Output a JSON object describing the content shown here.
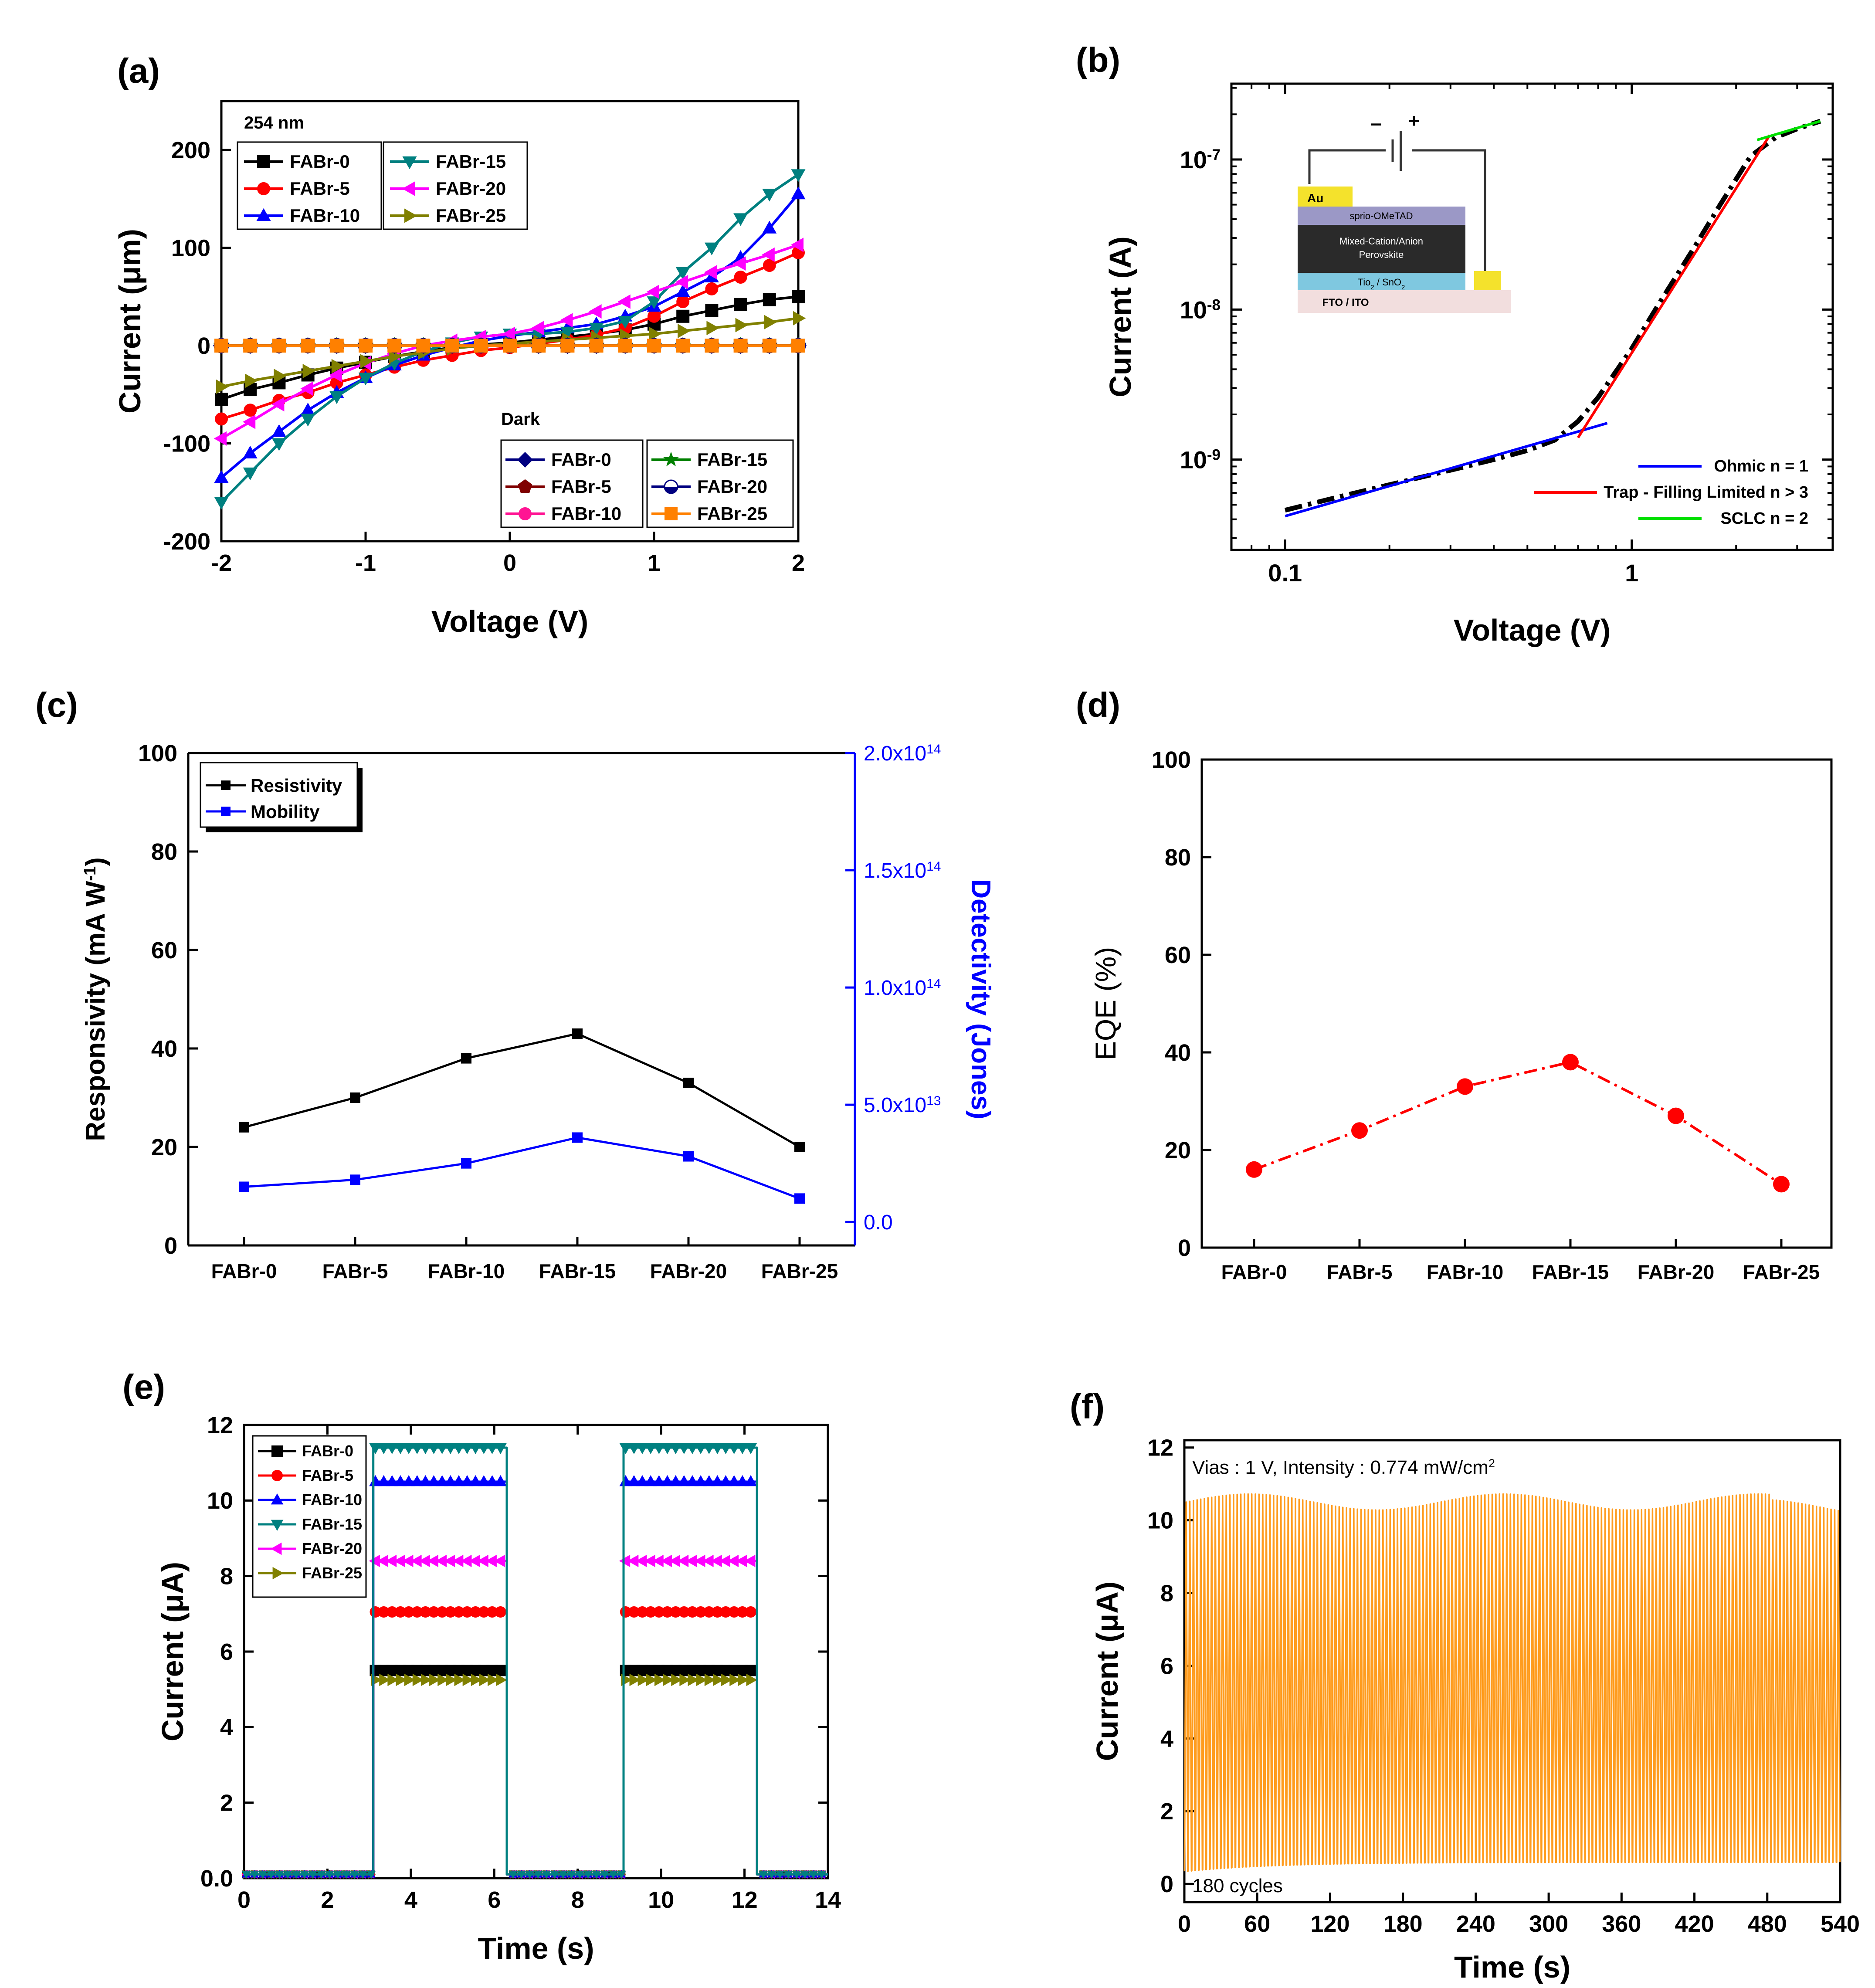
{
  "colors": {
    "black": "#000000",
    "red": "#ff0000",
    "blue": "#0000ff",
    "teal": "#008080",
    "magenta": "#ff00ff",
    "olive": "#808000",
    "navy": "#000080",
    "maroon": "#800000",
    "pink": "#ff1493",
    "green": "#008000",
    "orange": "#ff8000",
    "bright_green": "#00e000",
    "orange_trace": "#ff9c1e"
  },
  "chart_data": [
    {
      "id": "a",
      "panel_label": "(a)",
      "type": "line",
      "xlabel": "Voltage (V)",
      "ylabel": "Current (μm)",
      "xlim": [
        -2,
        2
      ],
      "ylim": [
        -200,
        250
      ],
      "xticks": [
        -2,
        -1,
        0,
        1,
        2
      ],
      "yticks": [
        -200,
        -100,
        0,
        100,
        200
      ],
      "legend1_title": "254 nm",
      "legend2_title": "Dark",
      "x": [
        -2.0,
        -1.8,
        -1.6,
        -1.4,
        -1.2,
        -1.0,
        -0.8,
        -0.6,
        -0.4,
        -0.2,
        0.0,
        0.2,
        0.4,
        0.6,
        0.8,
        1.0,
        1.2,
        1.4,
        1.6,
        1.8,
        2.0
      ],
      "series_light": [
        {
          "name": "FABr-0",
          "values": [
            -55,
            -45,
            -38,
            -30,
            -23,
            -17,
            -11,
            -6,
            -2,
            1,
            3,
            6,
            9,
            12,
            16,
            22,
            30,
            36,
            42,
            47,
            50
          ]
        },
        {
          "name": "FABr-5",
          "values": [
            -75,
            -66,
            -56,
            -48,
            -38,
            -30,
            -22,
            -15,
            -10,
            -5,
            -2,
            2,
            6,
            11,
            18,
            30,
            45,
            58,
            70,
            82,
            95
          ]
        },
        {
          "name": "FABr-10",
          "values": [
            -135,
            -110,
            -88,
            -66,
            -48,
            -33,
            -20,
            -10,
            -2,
            5,
            10,
            14,
            18,
            22,
            30,
            40,
            55,
            70,
            90,
            120,
            155
          ]
        },
        {
          "name": "FABr-15",
          "values": [
            -160,
            -130,
            -100,
            -75,
            -52,
            -33,
            -18,
            -6,
            3,
            9,
            12,
            12,
            14,
            18,
            25,
            45,
            75,
            100,
            130,
            155,
            175
          ]
        },
        {
          "name": "FABr-20",
          "values": [
            -95,
            -78,
            -60,
            -44,
            -30,
            -18,
            -8,
            0,
            5,
            9,
            12,
            18,
            26,
            35,
            45,
            55,
            65,
            75,
            84,
            93,
            103
          ]
        },
        {
          "name": "FABr-25",
          "values": [
            -42,
            -36,
            -31,
            -26,
            -21,
            -16,
            -11,
            -7,
            -3,
            0,
            2,
            4,
            6,
            8,
            10,
            12,
            15,
            18,
            21,
            24,
            28
          ]
        }
      ],
      "series_dark": [
        {
          "name": "FABr-0"
        },
        {
          "name": "FABr-5"
        },
        {
          "name": "FABr-10"
        },
        {
          "name": "FABr-15"
        },
        {
          "name": "FABr-20"
        },
        {
          "name": "FABr-25"
        }
      ]
    },
    {
      "id": "b",
      "panel_label": "(b)",
      "type": "line",
      "xlabel": "Voltage (V)",
      "ylabel": "Current (A)",
      "xscale": "log",
      "yscale": "log",
      "xlim": [
        0.07,
        3.8
      ],
      "ylim": [
        2.5e-10,
        3.2e-07
      ],
      "xtick_labels": [
        "0.1",
        "1"
      ],
      "ytick_bases": [
        "10",
        "10",
        "10"
      ],
      "ytick_exps": [
        "-9",
        "-8",
        "-7"
      ],
      "measured": {
        "x": [
          0.1,
          0.15,
          0.2,
          0.3,
          0.4,
          0.5,
          0.6,
          0.7,
          0.8,
          1.0,
          1.2,
          1.5,
          1.8,
          2.2,
          2.6,
          3.0,
          3.5
        ],
        "y": [
          4.6e-10,
          5.8e-10,
          6.8e-10,
          8.5e-10,
          1e-09,
          1.15e-09,
          1.35e-09,
          1.8e-09,
          2.6e-09,
          5.5e-09,
          1.1e-08,
          2.5e-08,
          5e-08,
          1.05e-07,
          1.4e-07,
          1.6e-07,
          1.8e-07
        ]
      },
      "fits": [
        {
          "name": "Ohmic n = 1",
          "x": [
            0.1,
            0.85
          ],
          "y": [
            4.2e-10,
            1.75e-09
          ]
        },
        {
          "name": "Trap - Filling Limited n > 3",
          "x": [
            0.7,
            2.5
          ],
          "y": [
            1.4e-09,
            1.45e-07
          ]
        },
        {
          "name": "SCLC n = 2",
          "x": [
            2.3,
            3.5
          ],
          "y": [
            1.35e-07,
            1.8e-07
          ]
        }
      ],
      "inset": {
        "minus": "–",
        "plus": "+",
        "layers": [
          "Au",
          "sprio-OMeTAD",
          "Mixed-Cation/Anion",
          "Perovskite",
          "Tio",
          "2",
          " / SnO",
          "2",
          "FTO / ITO"
        ]
      }
    },
    {
      "id": "c",
      "panel_label": "(c)",
      "type": "line",
      "categories": [
        "FABr-0",
        "FABr-5",
        "FABr-10",
        "FABr-15",
        "FABr-20",
        "FABr-25"
      ],
      "ylabel_main": "Responsivity (mA W",
      "ylabel_sup": "-1",
      "ylabel_close": ")",
      "ylabel_right": "Detectivity (Jones)",
      "ylim": [
        0,
        100
      ],
      "yticks": [
        0,
        20,
        40,
        60,
        80,
        100
      ],
      "y2lim": [
        -10000000000000.0,
        200000000000000.0
      ],
      "y2tick_values": [
        0.0,
        50000000000000.0,
        100000000000000.0,
        150000000000000.0,
        200000000000000.0
      ],
      "y2tick_mant": [
        "0.0",
        "5.0x10",
        "1.0x10",
        "1.5x10",
        "2.0x10"
      ],
      "y2tick_exp": [
        "",
        "13",
        "14",
        "14",
        "14"
      ],
      "series": [
        {
          "name": "Resistivity",
          "axis": "left",
          "values": [
            24,
            30,
            38,
            43,
            33,
            20
          ]
        },
        {
          "name": "Mobility",
          "axis": "right",
          "values": [
            15000000000000.0,
            18000000000000.0,
            25000000000000.0,
            36000000000000.0,
            28000000000000.0,
            10000000000000.0
          ]
        }
      ]
    },
    {
      "id": "d",
      "panel_label": "(d)",
      "type": "line",
      "categories": [
        "FABr-0",
        "FABr-5",
        "FABr-10",
        "FABr-15",
        "FABr-20",
        "FABr-25"
      ],
      "ylabel": "EQE (%)",
      "ylim": [
        0,
        100
      ],
      "yticks": [
        0,
        20,
        40,
        60,
        80,
        100
      ],
      "values": [
        16,
        24,
        33,
        38,
        27,
        13
      ]
    },
    {
      "id": "e",
      "panel_label": "(e)",
      "type": "line",
      "xlabel": "Time (s)",
      "ylabel": "Current (μA)",
      "xlim": [
        0,
        14
      ],
      "ylim": [
        0,
        12
      ],
      "xticks": [
        0,
        2,
        4,
        6,
        8,
        10,
        12,
        14
      ],
      "ytick_labels": [
        "0.0",
        "2",
        "4",
        "6",
        "8",
        "10",
        "12"
      ],
      "ytick_values": [
        0,
        2,
        4,
        6,
        8,
        10,
        12
      ],
      "on_periods": [
        [
          3.1,
          6.3
        ],
        [
          9.1,
          12.3
        ]
      ],
      "series": [
        {
          "name": "FABr-0",
          "on": 5.5,
          "off": 0.1
        },
        {
          "name": "FABr-5",
          "on": 7.05,
          "off": 0.1
        },
        {
          "name": "FABr-10",
          "on": 10.5,
          "off": 0.1
        },
        {
          "name": "FABr-15",
          "on": 11.4,
          "off": 0.1
        },
        {
          "name": "FABr-20",
          "on": 8.4,
          "off": 0.1
        },
        {
          "name": "FABr-25",
          "on": 5.25,
          "off": 0.1
        }
      ]
    },
    {
      "id": "f",
      "panel_label": "(f)",
      "type": "line",
      "xlabel": "Time (s)",
      "ylabel": "Current (μA)",
      "xlim": [
        0,
        540
      ],
      "ylim": [
        -0.5,
        12.2
      ],
      "xticks": [
        0,
        60,
        120,
        180,
        240,
        300,
        360,
        420,
        480,
        540
      ],
      "yticks": [
        0,
        2,
        4,
        6,
        8,
        10,
        12
      ],
      "annotation": "Vias : 1 V, Intensity : 0.774 mW/cm",
      "annotation_sup": "2",
      "cycles_label": "180 cycles",
      "cycles": 180,
      "on": 10.5,
      "off": 0.6
    }
  ]
}
